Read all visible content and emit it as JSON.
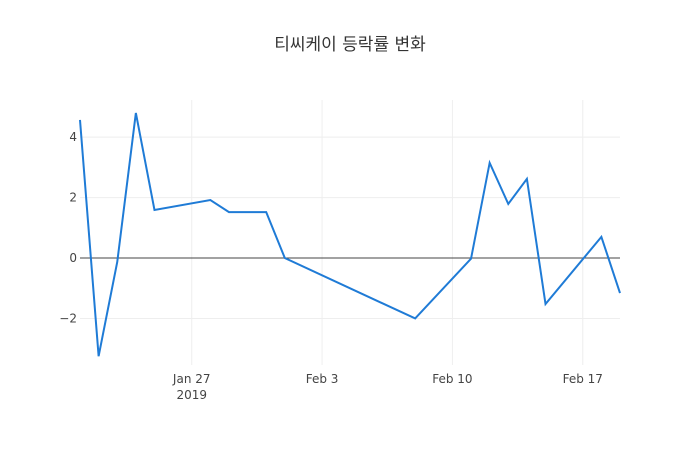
{
  "chart_data": {
    "type": "line",
    "title": "티씨케이 등락률 변화",
    "x": [
      "2019-01-21",
      "2019-01-22",
      "2019-01-23",
      "2019-01-24",
      "2019-01-25",
      "2019-01-28",
      "2019-01-29",
      "2019-01-31",
      "2019-02-01",
      "2019-02-08",
      "2019-02-11",
      "2019-02-12",
      "2019-02-13",
      "2019-02-14",
      "2019-02-15",
      "2019-02-18",
      "2019-02-19"
    ],
    "series": [
      {
        "color": "#1f7bd6",
        "values": [
          4.57,
          -3.25,
          -0.13,
          4.8,
          1.59,
          1.92,
          1.52,
          1.52,
          0,
          -2.0,
          -0.02,
          3.15,
          1.79,
          2.62,
          -1.52,
          0.7,
          -1.16
        ]
      }
    ],
    "xlim": [
      "2019-01-21",
      "2019-02-19"
    ],
    "xticks": [
      {
        "value": "2019-01-27",
        "label": "Jan 27\n2019"
      },
      {
        "value": "2019-02-03",
        "label": "Feb 3"
      },
      {
        "value": "2019-02-10",
        "label": "Feb 10"
      },
      {
        "value": "2019-02-17",
        "label": "Feb 17"
      }
    ],
    "ylim": [
      -3.54,
      5.23
    ],
    "yticks": [
      {
        "value": -2,
        "label": "−2"
      },
      0,
      2,
      4
    ],
    "grid": true,
    "zeroline": true
  }
}
